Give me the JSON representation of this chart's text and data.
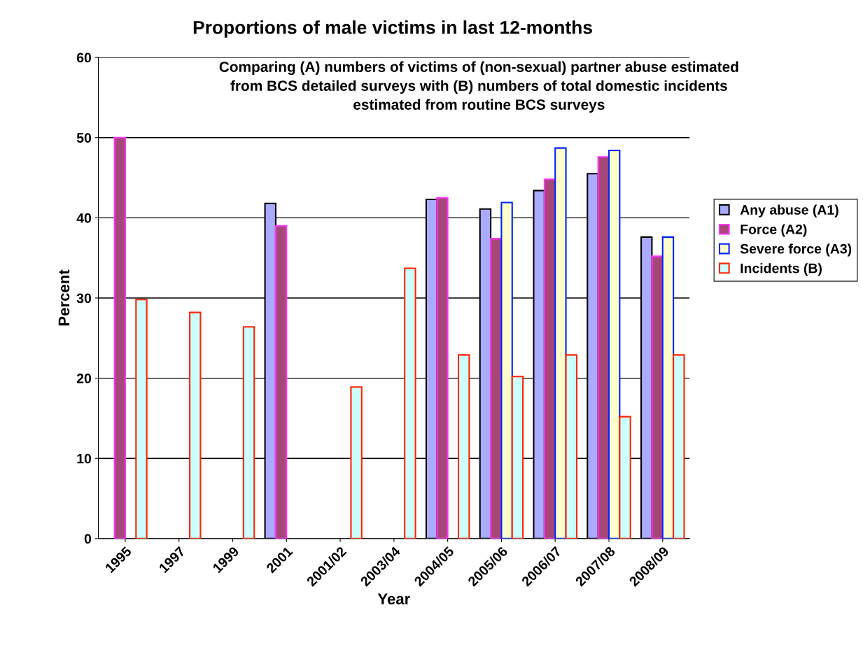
{
  "chart_data": {
    "type": "bar",
    "title": "Proportions of male victims in last 12-months",
    "subtitle": "Comparing (A) numbers of victims of (non-sexual) partner abuse estimated\nfrom BCS detailed surveys with (B) numbers of total domestic incidents\nestimated from routine BCS surveys",
    "xlabel": "Year",
    "ylabel": "Percent",
    "categories": [
      "1995",
      "1997",
      "1999",
      "2001",
      "2001/02",
      "2003/04",
      "2004/05",
      "2005/06",
      "2006/07",
      "2007/08",
      "2008/09"
    ],
    "series": [
      {
        "name": "Any abuse (A1)",
        "color": "#aaaaff",
        "values": [
          null,
          null,
          null,
          41.8,
          null,
          null,
          42.3,
          41.1,
          43.4,
          45.5,
          37.6
        ]
      },
      {
        "name": "Force (A2)",
        "color": "#a64877",
        "values": [
          50,
          null,
          null,
          39,
          null,
          null,
          42.5,
          37.4,
          44.8,
          47.6,
          35.2
        ]
      },
      {
        "name": "Severe force (A3)",
        "color": "#ffffcc",
        "values": [
          null,
          null,
          null,
          null,
          null,
          null,
          null,
          41.9,
          48.7,
          48.4,
          37.6
        ]
      },
      {
        "name": "Incidents (B)",
        "color": "#ccffff",
        "values": [
          29.8,
          28.2,
          26.4,
          null,
          18.9,
          33.7,
          22.9,
          20.2,
          22.9,
          15.2,
          22.9
        ]
      }
    ],
    "ylim": [
      0,
      60
    ],
    "yticks": [
      0,
      10,
      20,
      30,
      40,
      50,
      60
    ],
    "grid": "y",
    "legend": "right"
  }
}
